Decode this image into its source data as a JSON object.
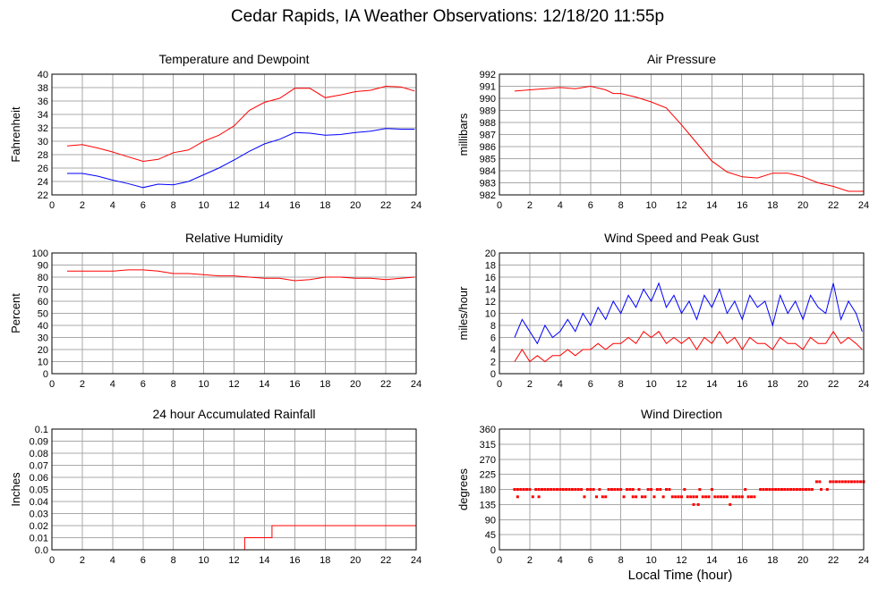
{
  "title": "Cedar Rapids, IA Weather Observations: 12/18/20 11:55p",
  "xlabel": "Local Time (hour)",
  "chart_data": [
    {
      "id": "temp",
      "type": "line",
      "title": "Temperature and Dewpoint",
      "ylabel": "Fahrenheit",
      "xlim": [
        0,
        24
      ],
      "ylim": [
        22,
        40
      ],
      "xticks": [
        0,
        2,
        4,
        6,
        8,
        10,
        12,
        14,
        16,
        18,
        20,
        22,
        24
      ],
      "yticks": [
        22,
        24,
        26,
        28,
        30,
        32,
        34,
        36,
        38,
        40
      ],
      "series": [
        {
          "color": "#ff0000",
          "x": [
            1,
            2,
            3,
            4,
            5,
            6,
            7,
            8,
            9,
            10,
            11,
            12,
            13,
            14,
            15,
            16,
            17,
            18,
            19,
            20,
            21,
            22,
            23,
            23.9
          ],
          "y": [
            29.3,
            29.5,
            29.0,
            28.4,
            27.7,
            27.0,
            27.3,
            28.3,
            28.7,
            30.0,
            30.9,
            32.3,
            34.6,
            35.8,
            36.4,
            37.9,
            37.9,
            36.5,
            36.9,
            37.4,
            37.6,
            38.2,
            38.1,
            37.5
          ]
        },
        {
          "color": "#0000ff",
          "x": [
            1,
            2,
            3,
            4,
            5,
            6,
            7,
            8,
            9,
            10,
            11,
            12,
            13,
            14,
            15,
            16,
            17,
            18,
            19,
            20,
            21,
            22,
            23,
            23.9
          ],
          "y": [
            25.2,
            25.2,
            24.8,
            24.2,
            23.7,
            23.1,
            23.6,
            23.5,
            24.0,
            25.0,
            26.0,
            27.2,
            28.5,
            29.6,
            30.3,
            31.3,
            31.2,
            30.9,
            31.0,
            31.3,
            31.5,
            31.9,
            31.8,
            31.8
          ]
        }
      ]
    },
    {
      "id": "pressure",
      "type": "line",
      "title": "Air Pressure",
      "ylabel": "millibars",
      "xlim": [
        0,
        24
      ],
      "ylim": [
        982,
        992
      ],
      "xticks": [
        0,
        2,
        4,
        6,
        8,
        10,
        12,
        14,
        16,
        18,
        20,
        22,
        24
      ],
      "yticks": [
        982,
        983,
        984,
        985,
        986,
        987,
        988,
        989,
        990,
        991,
        992
      ],
      "series": [
        {
          "color": "#ff0000",
          "x": [
            1,
            2,
            3,
            4,
            5,
            6,
            7,
            7.5,
            8,
            9,
            10,
            11,
            12,
            13,
            14,
            15,
            16,
            17,
            18,
            19,
            20,
            21,
            22,
            23,
            24
          ],
          "y": [
            990.6,
            990.7,
            990.8,
            990.9,
            990.8,
            991.0,
            990.7,
            990.4,
            990.4,
            990.1,
            989.7,
            989.2,
            987.8,
            986.3,
            984.8,
            983.9,
            983.5,
            983.4,
            983.8,
            983.8,
            983.5,
            983.0,
            982.7,
            982.3,
            982.3
          ]
        }
      ]
    },
    {
      "id": "humidity",
      "type": "line",
      "title": "Relative Humidity",
      "ylabel": "Percent",
      "xlim": [
        0,
        24
      ],
      "ylim": [
        0,
        100
      ],
      "xticks": [
        0,
        2,
        4,
        6,
        8,
        10,
        12,
        14,
        16,
        18,
        20,
        22,
        24
      ],
      "yticks": [
        0,
        10,
        20,
        30,
        40,
        50,
        60,
        70,
        80,
        90,
        100
      ],
      "series": [
        {
          "color": "#ff0000",
          "x": [
            1,
            2,
            3,
            4,
            5,
            6,
            7,
            8,
            9,
            10,
            11,
            12,
            13,
            14,
            15,
            16,
            17,
            18,
            19,
            20,
            21,
            22,
            23,
            23.9
          ],
          "y": [
            85,
            85,
            85,
            85,
            86,
            86,
            85,
            83,
            83,
            82,
            81,
            81,
            80,
            79,
            79,
            77,
            78,
            80,
            80,
            79,
            79,
            78,
            79,
            80
          ]
        }
      ]
    },
    {
      "id": "wind",
      "type": "line",
      "title": "Wind Speed and Peak Gust",
      "ylabel": "miles/hour",
      "xlim": [
        0,
        24
      ],
      "ylim": [
        0,
        20
      ],
      "xticks": [
        0,
        2,
        4,
        6,
        8,
        10,
        12,
        14,
        16,
        18,
        20,
        22,
        24
      ],
      "yticks": [
        0,
        2,
        4,
        6,
        8,
        10,
        12,
        14,
        16,
        18,
        20
      ],
      "series": [
        {
          "color": "#0000ff",
          "x": [
            1,
            1.5,
            2,
            2.5,
            3,
            3.5,
            4,
            4.5,
            5,
            5.5,
            6,
            6.5,
            7,
            7.5,
            8,
            8.5,
            9,
            9.5,
            10,
            10.5,
            11,
            11.5,
            12,
            12.5,
            13,
            13.5,
            14,
            14.5,
            15,
            15.5,
            16,
            16.5,
            17,
            17.5,
            18,
            18.5,
            19,
            19.5,
            20,
            20.5,
            21,
            21.5,
            22,
            22.5,
            23,
            23.5,
            23.9
          ],
          "y": [
            6,
            9,
            7,
            5,
            8,
            6,
            7,
            9,
            7,
            10,
            8,
            11,
            9,
            12,
            10,
            13,
            11,
            14,
            12,
            15,
            11,
            13,
            10,
            12,
            9,
            13,
            11,
            14,
            10,
            12,
            9,
            13,
            11,
            12,
            8,
            13,
            10,
            12,
            9,
            13,
            11,
            10,
            15,
            9,
            12,
            10,
            7
          ]
        },
        {
          "color": "#ff0000",
          "x": [
            1,
            1.5,
            2,
            2.5,
            3,
            3.5,
            4,
            4.5,
            5,
            5.5,
            6,
            6.5,
            7,
            7.5,
            8,
            8.5,
            9,
            9.5,
            10,
            10.5,
            11,
            11.5,
            12,
            12.5,
            13,
            13.5,
            14,
            14.5,
            15,
            15.5,
            16,
            16.5,
            17,
            17.5,
            18,
            18.5,
            19,
            19.5,
            20,
            20.5,
            21,
            21.5,
            22,
            22.5,
            23,
            23.5,
            23.9
          ],
          "y": [
            2,
            4,
            2,
            3,
            2,
            3,
            3,
            4,
            3,
            4,
            4,
            5,
            4,
            5,
            5,
            6,
            5,
            7,
            6,
            7,
            5,
            6,
            5,
            6,
            4,
            6,
            5,
            7,
            5,
            6,
            4,
            6,
            5,
            5,
            4,
            6,
            5,
            5,
            4,
            6,
            5,
            5,
            7,
            5,
            6,
            5,
            4
          ]
        }
      ]
    },
    {
      "id": "rain",
      "type": "line",
      "title": "24 hour Accumulated Rainfall",
      "ylabel": "Inches",
      "xlim": [
        0,
        24
      ],
      "ylim": [
        0,
        0.1
      ],
      "xticks": [
        0,
        2,
        4,
        6,
        8,
        10,
        12,
        14,
        16,
        18,
        20,
        22,
        24
      ],
      "yticks": [
        0,
        0.01,
        0.02,
        0.03,
        0.04,
        0.05,
        0.06,
        0.07,
        0.08,
        0.09,
        0.1
      ],
      "ytick_labels": [
        "0.0",
        "0.01",
        "0.02",
        "0.03",
        "0.04",
        "0.05",
        "0.06",
        "0.07",
        "0.08",
        "0.09",
        "0.1"
      ],
      "series": [
        {
          "color": "#ff0000",
          "x": [
            1,
            12.7,
            12.7,
            14.5,
            14.5,
            24
          ],
          "y": [
            0,
            0,
            0.01,
            0.01,
            0.02,
            0.02
          ]
        }
      ]
    },
    {
      "id": "direction",
      "type": "scatter",
      "title": "Wind Direction",
      "ylabel": "degrees",
      "xlim": [
        0,
        24
      ],
      "ylim": [
        0,
        360
      ],
      "xticks": [
        0,
        2,
        4,
        6,
        8,
        10,
        12,
        14,
        16,
        18,
        20,
        22,
        24
      ],
      "yticks": [
        0,
        45,
        90,
        135,
        180,
        225,
        270,
        315,
        360
      ],
      "series": [
        {
          "color": "#ff0000",
          "x": [
            1.0,
            1.2,
            1.4,
            1.6,
            1.8,
            2.0,
            2.4,
            2.6,
            2.8,
            3.0,
            3.2,
            3.4,
            3.6,
            3.8,
            4.0,
            4.2,
            4.4,
            4.6,
            4.8,
            5.0,
            5.2,
            5.4,
            5.8,
            6.0,
            6.2,
            6.6,
            7.2,
            7.4,
            7.6,
            7.8,
            8.0,
            8.4,
            8.6,
            8.8,
            9.2,
            9.8,
            10.0,
            10.4,
            10.6,
            11.0,
            11.2,
            12.2,
            13.2,
            14.0,
            16.2,
            17.2,
            17.4,
            17.6,
            17.8,
            18.0,
            18.2,
            18.4,
            18.6,
            18.8,
            19.0,
            19.2,
            19.4,
            19.6,
            19.8,
            20.0,
            20.2,
            20.4,
            20.6,
            21.2,
            21.6,
            1.2,
            2.2,
            2.6,
            5.6,
            6.4,
            6.8,
            7.0,
            8.2,
            8.8,
            9.0,
            9.4,
            9.6,
            10.2,
            10.8,
            11.4,
            11.6,
            11.8,
            12.0,
            12.4,
            12.6,
            12.8,
            13.0,
            13.4,
            13.6,
            13.8,
            14.2,
            14.4,
            14.6,
            14.8,
            15.0,
            15.4,
            15.6,
            15.8,
            16.0,
            16.4,
            16.6,
            16.8,
            12.8,
            13.1,
            15.2,
            20.9,
            21.1,
            21.8,
            22.0,
            22.2,
            22.4,
            22.6,
            22.8,
            23.0,
            23.2,
            23.4,
            23.6,
            23.8,
            24.0
          ],
          "y": [
            180,
            180,
            180,
            180,
            180,
            180,
            180,
            180,
            180,
            180,
            180,
            180,
            180,
            180,
            180,
            180,
            180,
            180,
            180,
            180,
            180,
            180,
            180,
            180,
            180,
            180,
            180,
            180,
            180,
            180,
            180,
            180,
            180,
            180,
            180,
            180,
            180,
            180,
            180,
            180,
            180,
            180,
            180,
            180,
            180,
            180,
            180,
            180,
            180,
            180,
            180,
            180,
            180,
            180,
            180,
            180,
            180,
            180,
            180,
            180,
            180,
            180,
            180,
            180,
            180,
            158,
            158,
            158,
            158,
            158,
            158,
            158,
            158,
            158,
            158,
            158,
            158,
            158,
            158,
            158,
            158,
            158,
            158,
            158,
            158,
            158,
            158,
            158,
            158,
            158,
            158,
            158,
            158,
            158,
            158,
            158,
            158,
            158,
            158,
            158,
            158,
            158,
            135,
            135,
            135,
            203,
            203,
            203,
            203,
            203,
            203,
            203,
            203,
            203,
            203,
            203,
            203,
            203,
            203
          ]
        }
      ]
    }
  ]
}
